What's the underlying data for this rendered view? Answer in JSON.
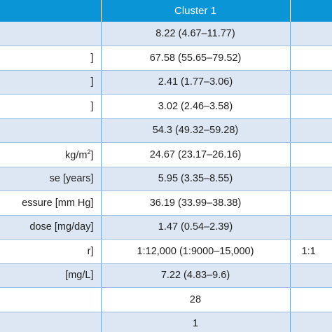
{
  "table": {
    "headers": [
      "",
      "Cluster 1",
      ""
    ],
    "rows": [
      {
        "label": "",
        "cluster1": "8.22 (4.67–11.77)",
        "cluster2": ""
      },
      {
        "label": "]",
        "cluster1": "67.58 (55.65–79.52)",
        "cluster2": ""
      },
      {
        "label": "]",
        "cluster1": "2.41 (1.77–3.06)",
        "cluster2": ""
      },
      {
        "label": "]",
        "cluster1": "3.02 (2.46–3.58)",
        "cluster2": ""
      },
      {
        "label": "",
        "cluster1": "54.3 (49.32–59.28)",
        "cluster2": ""
      },
      {
        "label": "kg/m",
        "label_sup": "2",
        "label_end": "]",
        "cluster1": "24.67 (23.17–26.16)",
        "cluster2": ""
      },
      {
        "label": "se [years]",
        "cluster1": "5.95 (3.35–8.55)",
        "cluster2": ""
      },
      {
        "label": "essure [mm Hg]",
        "cluster1": "36.19 (33.99–38.38)",
        "cluster2": ""
      },
      {
        "label": "dose [mg/day]",
        "cluster1": "1.47 (0.54–2.39)",
        "cluster2": ""
      },
      {
        "label": "r]",
        "cluster1": "1:12,000 (1:9000–15,000)",
        "cluster2": "1:1"
      },
      {
        "label": "[mg/L]",
        "cluster1": "7.22 (4.83–9.6)",
        "cluster2": ""
      },
      {
        "label": "",
        "cluster1": "28",
        "cluster2": ""
      },
      {
        "label": "",
        "cluster1": "1",
        "cluster2": ""
      }
    ]
  }
}
